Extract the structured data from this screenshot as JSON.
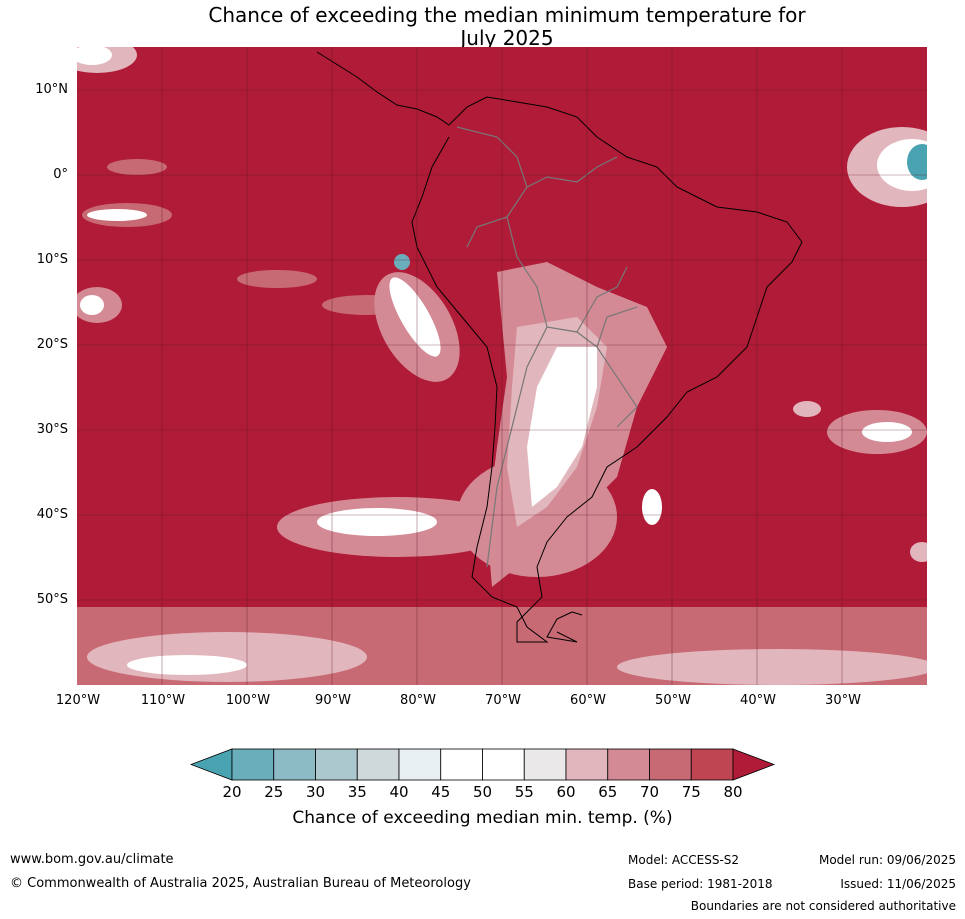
{
  "title_line1": "Chance of exceeding the median minimum temperature for",
  "title_line2": "July 2025",
  "lat_labels": [
    "10°N",
    "0°",
    "10°S",
    "20°S",
    "30°S",
    "40°S",
    "50°S"
  ],
  "lon_labels": [
    "120°W",
    "110°W",
    "100°W",
    "90°W",
    "80°W",
    "70°W",
    "60°W",
    "50°W",
    "40°W",
    "30°W"
  ],
  "colorbar": {
    "ticks": [
      "20",
      "25",
      "30",
      "35",
      "40",
      "45",
      "50",
      "55",
      "60",
      "65",
      "70",
      "75",
      "80"
    ],
    "colors": [
      "#4aa3b0",
      "#6aaebb",
      "#8cbac5",
      "#aac8ce",
      "#cfd9dc",
      "#e9f0f2",
      "#ffffff",
      "#ffffff",
      "#ebe8ea",
      "#e2b6bd",
      "#d48a95",
      "#c76a74",
      "#bf4552",
      "#b01c37"
    ],
    "label": "Chance of exceeding median min. temp. (%)"
  },
  "footer": {
    "website": "www.bom.gov.au/climate",
    "copyright": "© Commonwealth of Australia 2025, Australian Bureau of Meteorology",
    "model": "Model: ACCESS-S2",
    "base_period": "Base period: 1981-2018",
    "model_run": "Model run: 09/06/2025",
    "issued": "Issued: 11/06/2025",
    "boundaries_note": "Boundaries are not considered authoritative"
  }
}
